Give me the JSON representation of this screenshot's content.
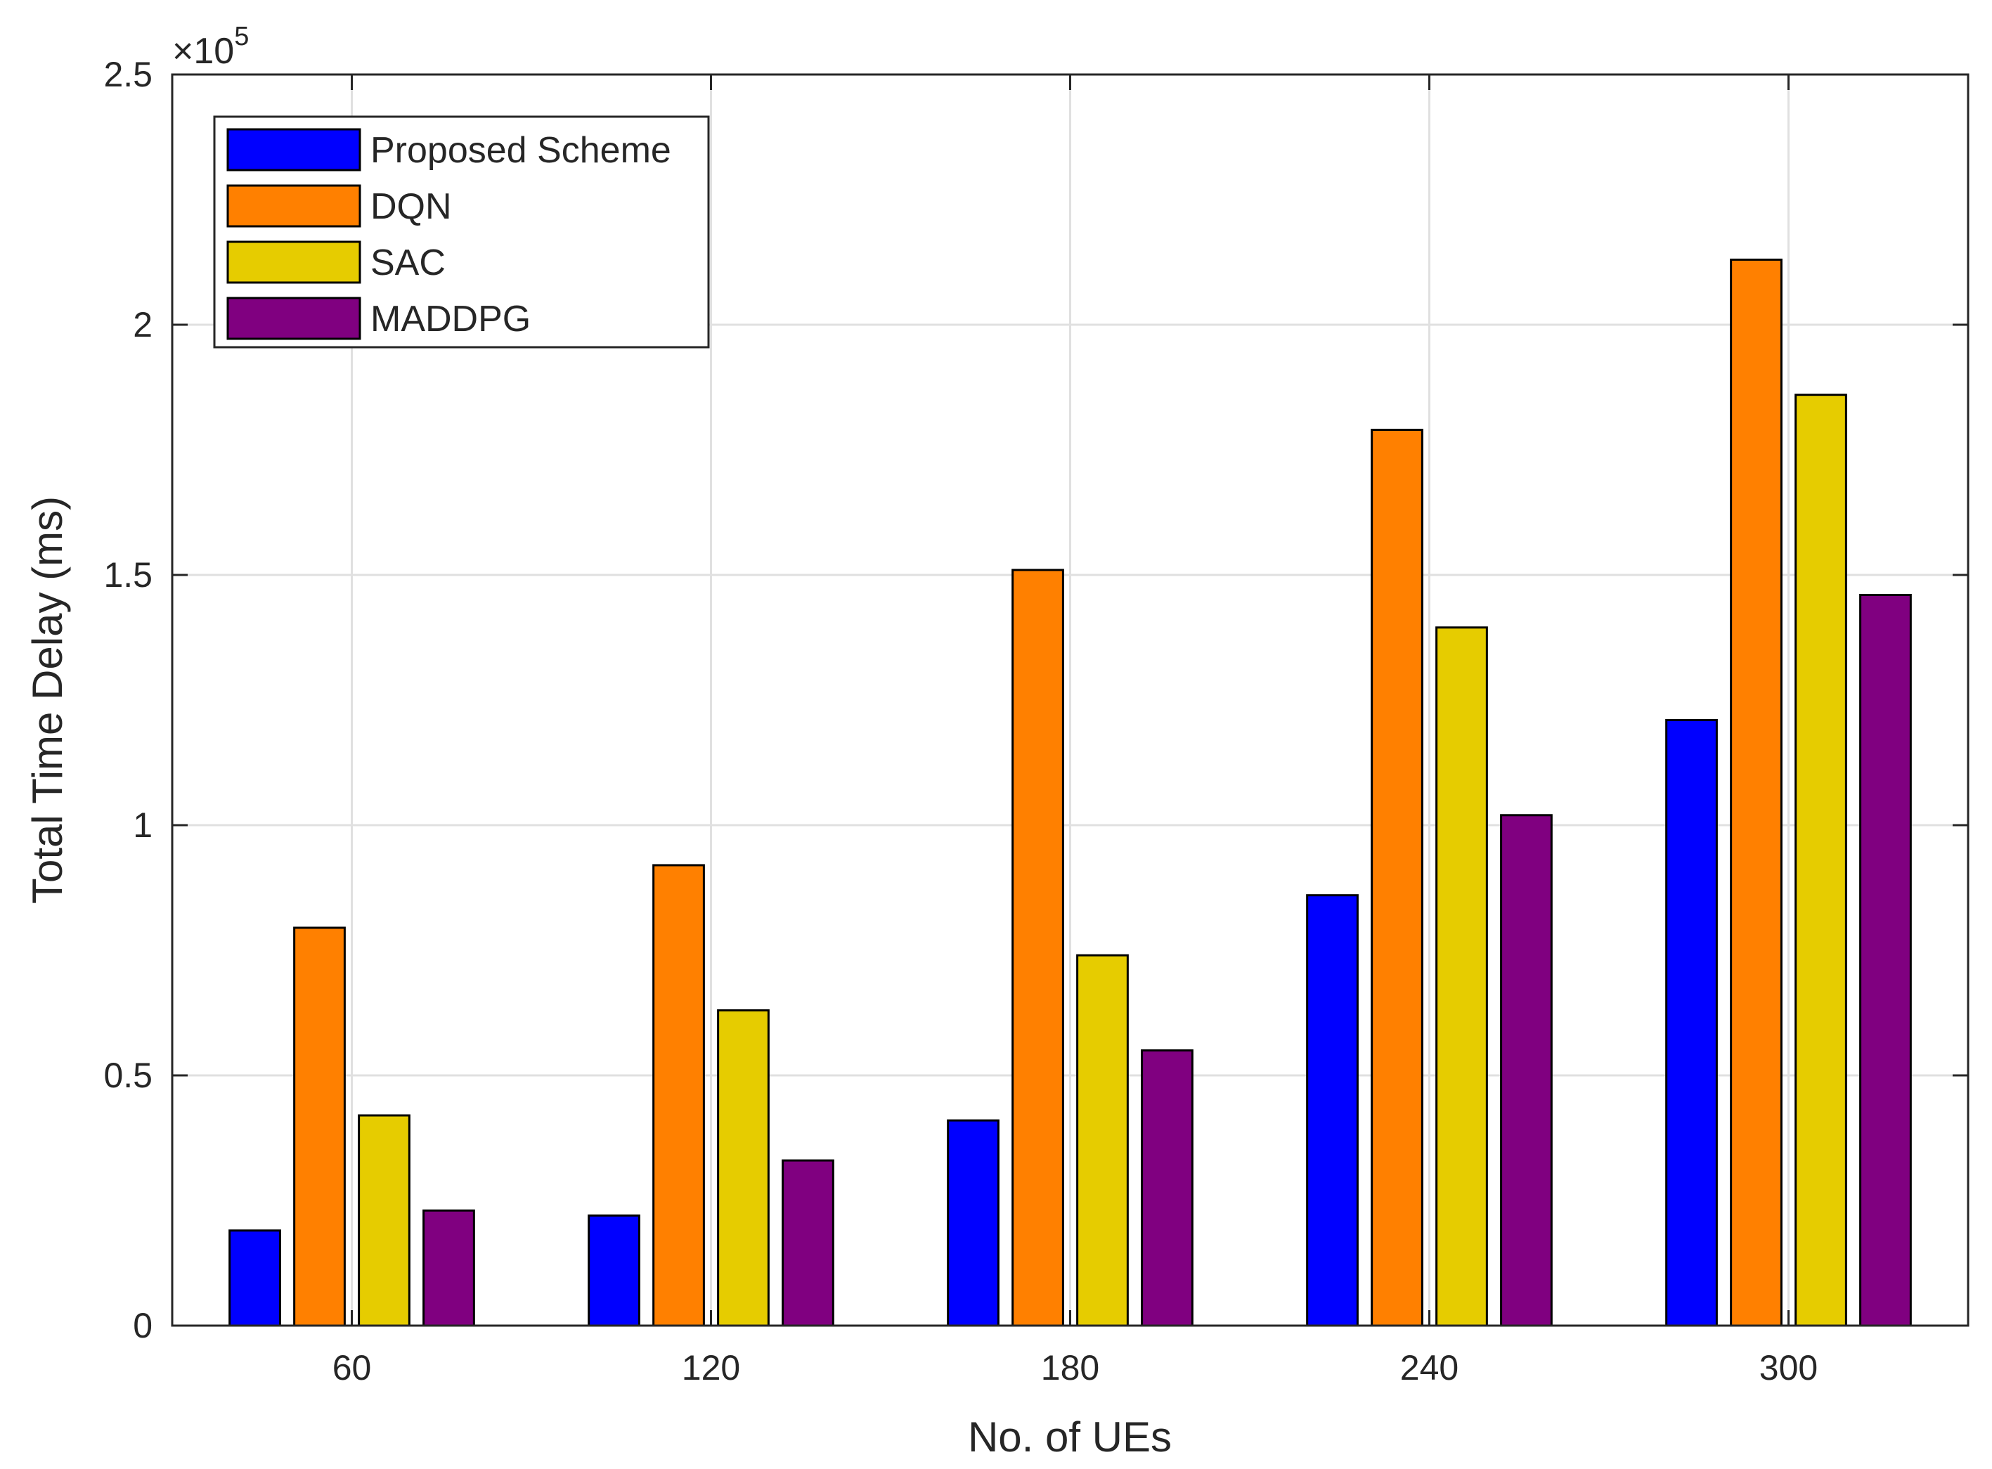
{
  "chart_data": {
    "type": "bar",
    "title": "",
    "xlabel": "No. of UEs",
    "ylabel": "Total Time Delay (ms)",
    "y_exponent_base": "×10",
    "y_exponent_power": "5",
    "categories": [
      "60",
      "120",
      "180",
      "240",
      "300"
    ],
    "ylim": [
      0,
      2.5
    ],
    "y_ticks": [
      0,
      0.5,
      1,
      1.5,
      2,
      2.5
    ],
    "y_tick_labels": [
      "0",
      "0.5",
      "1",
      "1.5",
      "2",
      "2.5"
    ],
    "grid": true,
    "legend_position": "top-left",
    "series": [
      {
        "name": "Proposed Scheme",
        "color": "#0000ff",
        "values": [
          0.19,
          0.22,
          0.41,
          0.86,
          1.21
        ]
      },
      {
        "name": "DQN",
        "color": "#ff8000",
        "values": [
          0.795,
          0.92,
          1.51,
          1.79,
          2.13
        ]
      },
      {
        "name": "SAC",
        "color": "#e6cc00",
        "values": [
          0.42,
          0.63,
          0.74,
          1.395,
          1.86
        ]
      },
      {
        "name": "MADDPG",
        "color": "#800080",
        "values": [
          0.23,
          0.33,
          0.55,
          1.02,
          1.46
        ]
      }
    ]
  }
}
